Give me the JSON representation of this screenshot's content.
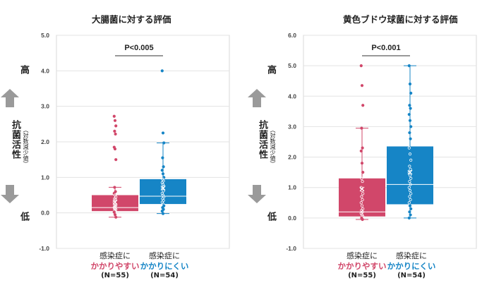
{
  "colors": {
    "red": "#d1476a",
    "blue": "#1685c6",
    "grid": "#e3e3e3"
  },
  "y_axis": {
    "label": "抗菌活性",
    "sublabel": "（対数減少値）",
    "high": "高",
    "low": "低"
  },
  "categories": [
    {
      "line1": "感染症に",
      "line2": "かかりやすい",
      "line3": "(N=55)"
    },
    {
      "line1": "感染症に",
      "line2": "かかりにくい",
      "line3": "(N=54)"
    }
  ],
  "chart_data": [
    {
      "type": "box",
      "title": "大腸菌に対する評価",
      "ylim": [
        -1.0,
        5.0
      ],
      "yticks": [
        "-1.0",
        "0.0",
        "1.0",
        "2.0",
        "3.0",
        "4.0",
        "5.0"
      ],
      "annotation": "P<0.005",
      "series": [
        {
          "min": -0.12,
          "q1": 0.05,
          "median": 0.15,
          "q3": 0.5,
          "max": 0.72,
          "mean": 0.3,
          "points": [
            2.72,
            2.6,
            2.45,
            2.3,
            2.22,
            1.85,
            1.8,
            1.5,
            0.72,
            0.6,
            0.55,
            0.5,
            0.45,
            0.4,
            0.38,
            0.3,
            0.25,
            0.22,
            0.2,
            0.18,
            0.15,
            0.12,
            0.1,
            0.08,
            0.05,
            0.02,
            -0.05,
            -0.12
          ]
        },
        {
          "min": -0.02,
          "q1": 0.25,
          "median": 0.47,
          "q3": 0.95,
          "max": 1.97,
          "mean": 0.7,
          "points": [
            4.0,
            2.25,
            1.97,
            1.55,
            1.3,
            1.2,
            1.1,
            1.0,
            0.95,
            0.9,
            0.85,
            0.8,
            0.75,
            0.7,
            0.62,
            0.55,
            0.5,
            0.45,
            0.4,
            0.35,
            0.3,
            0.25,
            0.2,
            0.15,
            0.1,
            0.05,
            -0.02
          ]
        }
      ]
    },
    {
      "type": "box",
      "title": "黄色ブドウ球菌に対する評価",
      "ylim": [
        -1.0,
        6.0
      ],
      "yticks": [
        "-1.0",
        "0.0",
        "1.0",
        "2.0",
        "3.0",
        "4.0",
        "5.0",
        "6.0"
      ],
      "annotation": "P<0.001",
      "series": [
        {
          "min": -0.05,
          "q1": 0.05,
          "median": 0.2,
          "q3": 1.3,
          "max": 2.95,
          "mean": 0.95,
          "points": [
            5.0,
            4.35,
            3.7,
            2.95,
            2.3,
            2.2,
            1.8,
            1.5,
            1.3,
            1.2,
            1.0,
            0.9,
            0.8,
            0.7,
            0.6,
            0.5,
            0.4,
            0.3,
            0.25,
            0.2,
            0.15,
            0.1,
            0.05,
            0.0,
            -0.05
          ]
        },
        {
          "min": 0.0,
          "q1": 0.45,
          "median": 1.1,
          "q3": 2.35,
          "max": 5.0,
          "mean": 1.5,
          "points": [
            5.0,
            4.4,
            4.1,
            3.7,
            3.6,
            3.4,
            3.2,
            3.0,
            2.8,
            2.6,
            2.3,
            2.1,
            1.9,
            1.7,
            1.6,
            1.5,
            1.4,
            1.3,
            1.2,
            1.1,
            1.0,
            0.9,
            0.8,
            0.7,
            0.6,
            0.5,
            0.4,
            0.3,
            0.2,
            0.1,
            0.0
          ]
        }
      ]
    }
  ]
}
